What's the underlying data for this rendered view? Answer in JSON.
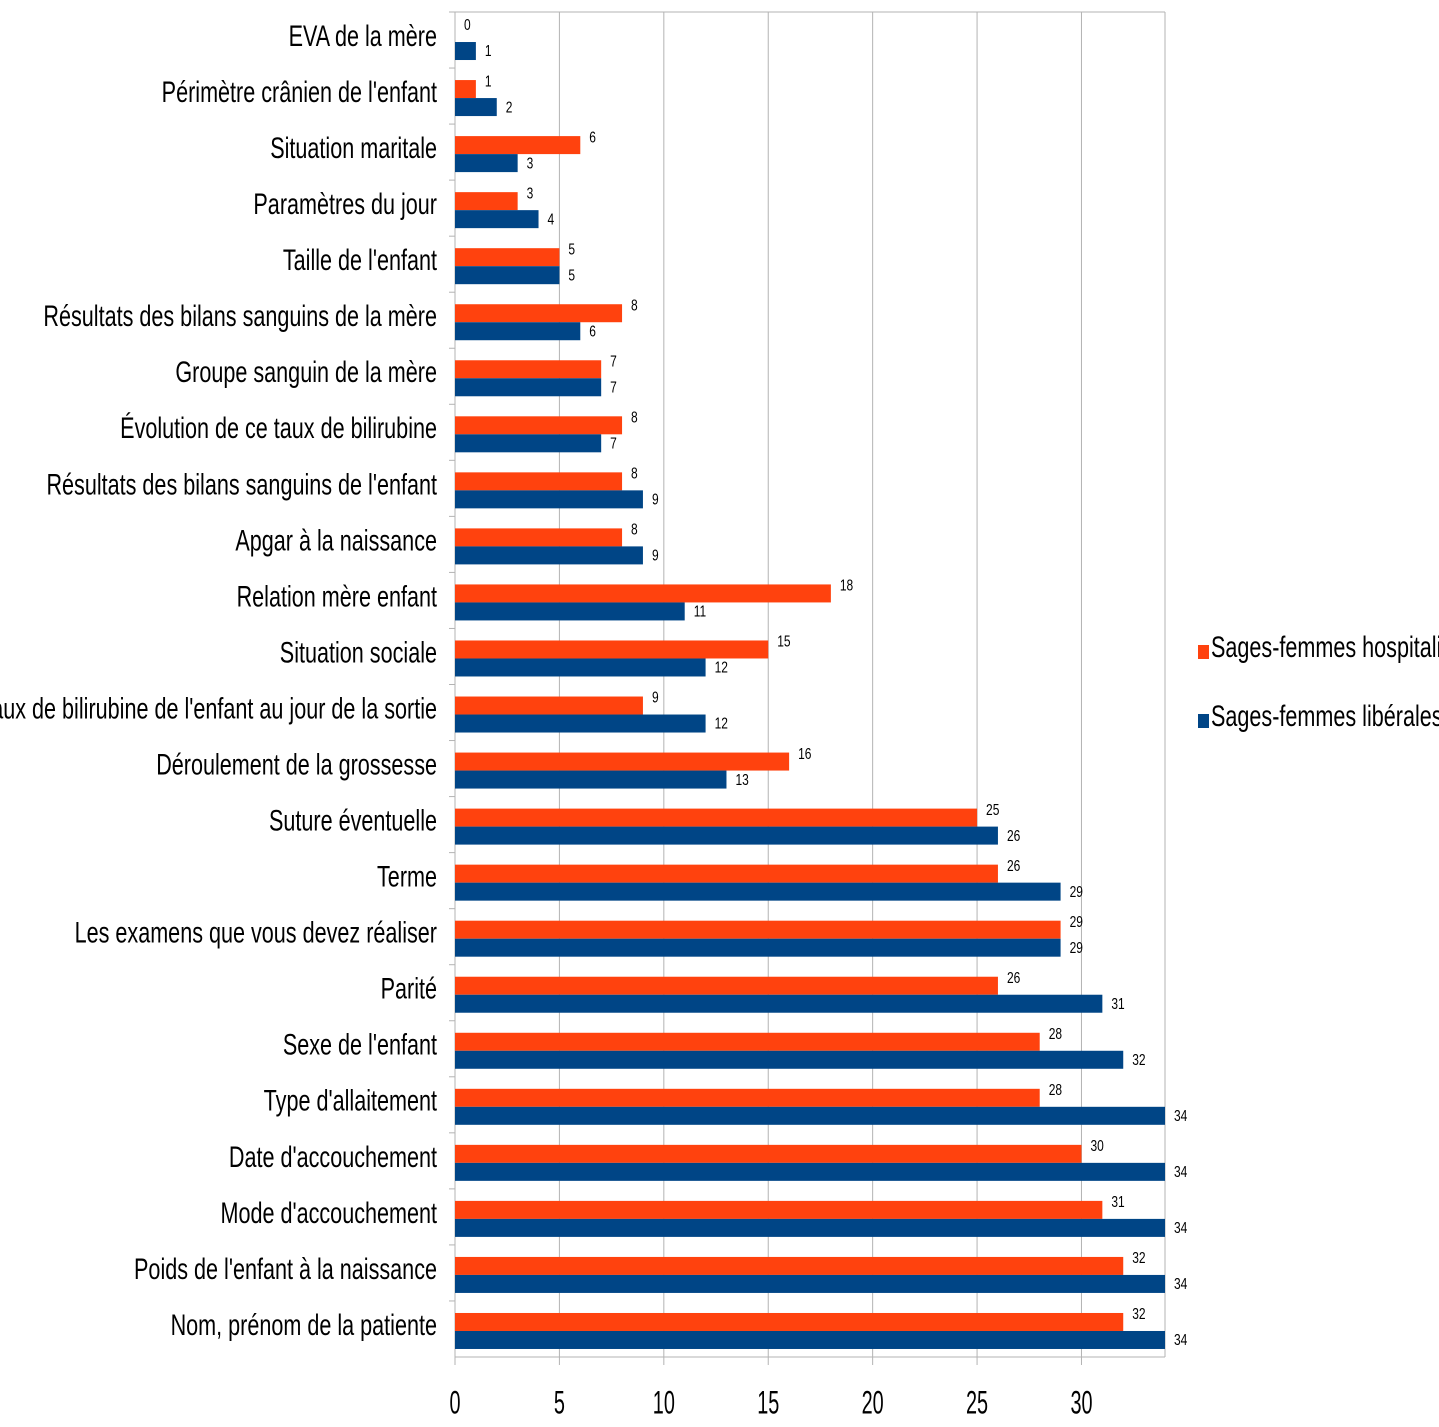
{
  "chart_data": {
    "type": "hbar",
    "categories": [
      "EVA de la mère",
      "Périmètre crânien de l'enfant",
      "Situation maritale",
      "Paramètres du jour",
      "Taille de l'enfant",
      "Résultats des bilans sanguins de la mère",
      "Groupe sanguin de la mère",
      "Évolution de ce taux de bilirubine",
      "Résultats des bilans sanguins de l'enfant",
      "Apgar à la naissance",
      "Relation mère enfant",
      "Situation sociale",
      "Taux de bilirubine de l'enfant au jour de la sortie",
      "Déroulement de la grossesse",
      "Suture éventuelle",
      "Terme",
      "Les examens que vous devez réaliser",
      "Parité",
      "Sexe de l'enfant",
      "Type d'allaitement",
      "Date d'accouchement",
      "Mode d'accouchement",
      "Poids de l'enfant à la naissance",
      "Nom, prénom de la patiente"
    ],
    "series": [
      {
        "name": "Sages-femmes hospitalières",
        "color": "#ff420e",
        "values": [
          0,
          1,
          6,
          3,
          5,
          8,
          7,
          8,
          8,
          8,
          18,
          15,
          9,
          16,
          25,
          26,
          29,
          26,
          28,
          28,
          30,
          31,
          32,
          32
        ]
      },
      {
        "name": "Sages-femmes libérales",
        "color": "#004586",
        "values": [
          1,
          2,
          3,
          4,
          5,
          6,
          7,
          7,
          9,
          9,
          11,
          12,
          12,
          13,
          26,
          29,
          29,
          31,
          32,
          34,
          34,
          34,
          34,
          34
        ]
      }
    ],
    "xlim": [
      0,
      34
    ],
    "xticks": [
      0,
      5,
      10,
      15,
      20,
      25,
      30
    ],
    "grid": true,
    "legend": "right"
  }
}
